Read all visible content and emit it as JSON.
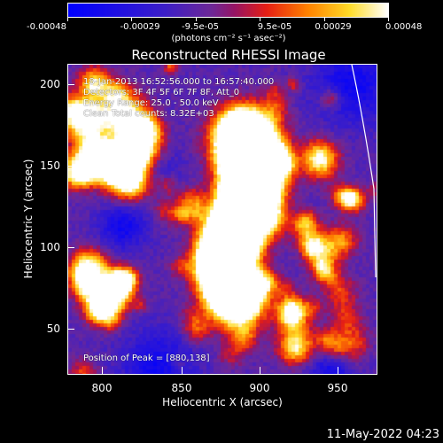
{
  "colorbar": {
    "tick_labels": [
      "-0.00048",
      "-0.00029",
      "-9.5e-05",
      "9.5e-05",
      "0.00029",
      "0.00048"
    ],
    "units_label": "(photons cm⁻² s⁻¹ asec⁻²)",
    "range": [
      -0.00048,
      0.00048
    ]
  },
  "title": "Reconstructed RHESSI Image",
  "info": {
    "time_range": "18-Jan-2013 16:52:56.000 to 16:57:40.000",
    "detectors": "Detectors: 3F 4F 5F 6F 7F 8F, Att_0",
    "energy": "Energy Range: 25.0 - 50.0 keV",
    "clean": "Clean      Total counts: 8.32E+03",
    "peak": "Position of Peak = [880,138]"
  },
  "axes": {
    "x_label": "Heliocentric X (arcsec)",
    "y_label": "Heliocentric Y (arcsec)",
    "x_ticks": [
      "800",
      "850",
      "900",
      "950"
    ],
    "y_ticks": [
      "200",
      "150",
      "100",
      "50"
    ],
    "x_range": [
      780,
      970
    ],
    "y_range": [
      20,
      210
    ]
  },
  "timestamp": "11-May-2022 04:23"
}
